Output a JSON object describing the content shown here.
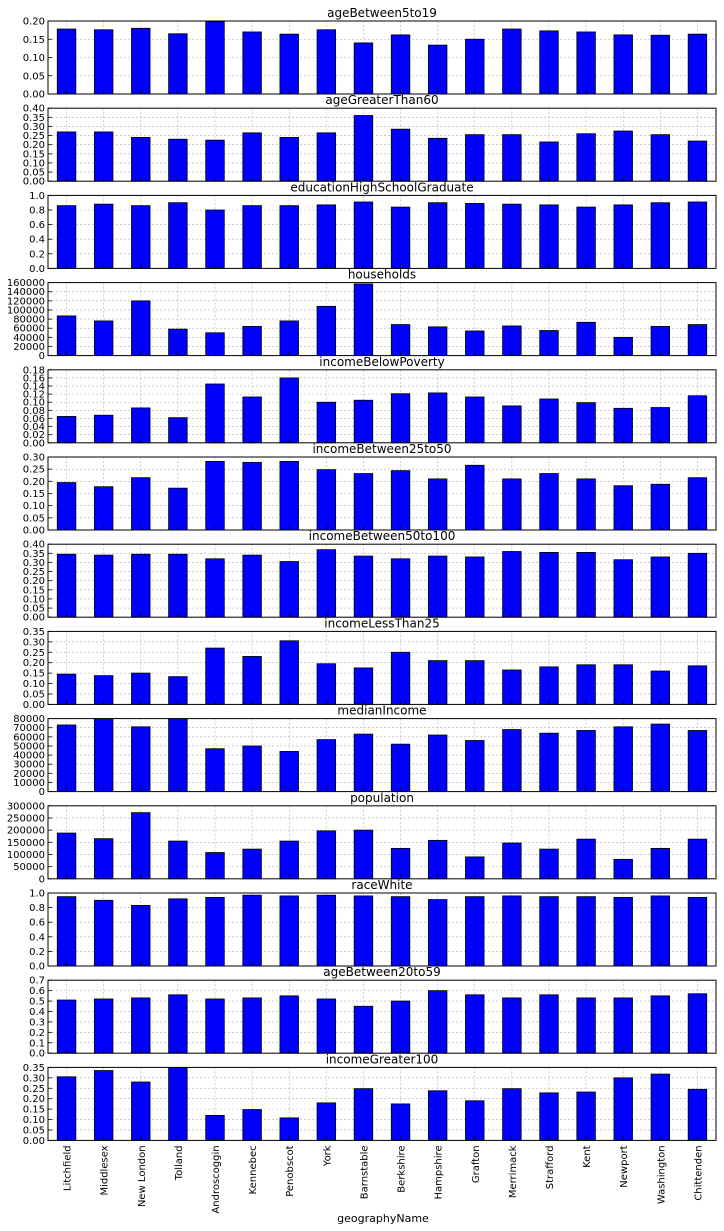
{
  "figure": {
    "xlabel": "geographyName"
  },
  "chart_data": {
    "type": "bar",
    "categories": [
      "Litchfield",
      "Middlesex",
      "New London",
      "Tolland",
      "Androscoggin",
      "Kennebec",
      "Penobscot",
      "York",
      "Barnstable",
      "Berkshire",
      "Hampshire",
      "Grafton",
      "Merrimack",
      "Strafford",
      "Kent",
      "Newport",
      "Washington",
      "Chittenden"
    ],
    "xlabel": "geographyName",
    "grid": true,
    "bar_color": "#0000ff",
    "panels": [
      {
        "title": "ageBetween5to19",
        "ylim": [
          0,
          0.2
        ],
        "ticks": [
          {
            "v": 0,
            "t": "0.00"
          },
          {
            "v": 0.05,
            "t": "0.05"
          },
          {
            "v": 0.1,
            "t": "0.10"
          },
          {
            "v": 0.15,
            "t": "0.15"
          },
          {
            "v": 0.2,
            "t": "0.20"
          }
        ],
        "values": [
          0.178,
          0.176,
          0.18,
          0.165,
          0.198,
          0.17,
          0.164,
          0.176,
          0.14,
          0.162,
          0.134,
          0.15,
          0.178,
          0.173,
          0.17,
          0.162,
          0.161,
          0.164
        ]
      },
      {
        "title": "ageGreaterThan60",
        "ylim": [
          0,
          0.4
        ],
        "ticks": [
          {
            "v": 0,
            "t": "0.00"
          },
          {
            "v": 0.05,
            "t": "0.05"
          },
          {
            "v": 0.1,
            "t": "0.10"
          },
          {
            "v": 0.15,
            "t": "0.15"
          },
          {
            "v": 0.2,
            "t": "0.20"
          },
          {
            "v": 0.25,
            "t": "0.25"
          },
          {
            "v": 0.3,
            "t": "0.30"
          },
          {
            "v": 0.35,
            "t": "0.35"
          },
          {
            "v": 0.4,
            "t": "0.40"
          }
        ],
        "values": [
          0.27,
          0.27,
          0.24,
          0.23,
          0.225,
          0.265,
          0.24,
          0.265,
          0.36,
          0.285,
          0.235,
          0.255,
          0.255,
          0.215,
          0.26,
          0.275,
          0.255,
          0.22
        ]
      },
      {
        "title": "educationHighSchoolGraduate",
        "ylim": [
          0,
          1.0
        ],
        "ticks": [
          {
            "v": 0,
            "t": "0.0"
          },
          {
            "v": 0.2,
            "t": "0.2"
          },
          {
            "v": 0.4,
            "t": "0.4"
          },
          {
            "v": 0.6,
            "t": "0.6"
          },
          {
            "v": 0.8,
            "t": "0.8"
          },
          {
            "v": 1.0,
            "t": "1.0"
          }
        ],
        "values": [
          0.86,
          0.88,
          0.86,
          0.9,
          0.8,
          0.86,
          0.86,
          0.87,
          0.91,
          0.84,
          0.9,
          0.89,
          0.88,
          0.87,
          0.84,
          0.87,
          0.9,
          0.91
        ]
      },
      {
        "title": "households",
        "ylim": [
          0,
          160000
        ],
        "ticks": [
          {
            "v": 0,
            "t": "0"
          },
          {
            "v": 20000,
            "t": "20000"
          },
          {
            "v": 40000,
            "t": "40000"
          },
          {
            "v": 60000,
            "t": "60000"
          },
          {
            "v": 80000,
            "t": "80000"
          },
          {
            "v": 100000,
            "t": "100000"
          },
          {
            "v": 120000,
            "t": "120000"
          },
          {
            "v": 140000,
            "t": "140000"
          },
          {
            "v": 160000,
            "t": "160000"
          }
        ],
        "values": [
          87000,
          76000,
          120000,
          58000,
          50000,
          64000,
          76000,
          108000,
          157000,
          68000,
          63000,
          54000,
          65000,
          55000,
          73000,
          40000,
          64000,
          68000
        ]
      },
      {
        "title": "incomeBelowPoverty",
        "ylim": [
          0,
          0.18
        ],
        "ticks": [
          {
            "v": 0,
            "t": "0.00"
          },
          {
            "v": 0.02,
            "t": "0.02"
          },
          {
            "v": 0.04,
            "t": "0.04"
          },
          {
            "v": 0.06,
            "t": "0.06"
          },
          {
            "v": 0.08,
            "t": "0.08"
          },
          {
            "v": 0.1,
            "t": "0.10"
          },
          {
            "v": 0.12,
            "t": "0.12"
          },
          {
            "v": 0.14,
            "t": "0.14"
          },
          {
            "v": 0.16,
            "t": "0.16"
          },
          {
            "v": 0.18,
            "t": "0.18"
          }
        ],
        "values": [
          0.065,
          0.068,
          0.086,
          0.062,
          0.145,
          0.113,
          0.16,
          0.1,
          0.105,
          0.121,
          0.123,
          0.113,
          0.091,
          0.108,
          0.099,
          0.085,
          0.087,
          0.116
        ]
      },
      {
        "title": "incomeBetween25to50",
        "ylim": [
          0,
          0.3
        ],
        "ticks": [
          {
            "v": 0,
            "t": "0.00"
          },
          {
            "v": 0.05,
            "t": "0.05"
          },
          {
            "v": 0.1,
            "t": "0.10"
          },
          {
            "v": 0.15,
            "t": "0.15"
          },
          {
            "v": 0.2,
            "t": "0.20"
          },
          {
            "v": 0.25,
            "t": "0.25"
          },
          {
            "v": 0.3,
            "t": "0.30"
          }
        ],
        "values": [
          0.195,
          0.178,
          0.215,
          0.172,
          0.282,
          0.278,
          0.282,
          0.248,
          0.232,
          0.244,
          0.21,
          0.266,
          0.21,
          0.232,
          0.21,
          0.182,
          0.188,
          0.215
        ]
      },
      {
        "title": "incomeBetween50to100",
        "ylim": [
          0,
          0.4
        ],
        "ticks": [
          {
            "v": 0,
            "t": "0.00"
          },
          {
            "v": 0.05,
            "t": "0.05"
          },
          {
            "v": 0.1,
            "t": "0.10"
          },
          {
            "v": 0.15,
            "t": "0.15"
          },
          {
            "v": 0.2,
            "t": "0.20"
          },
          {
            "v": 0.25,
            "t": "0.25"
          },
          {
            "v": 0.3,
            "t": "0.30"
          },
          {
            "v": 0.35,
            "t": "0.35"
          },
          {
            "v": 0.4,
            "t": "0.40"
          }
        ],
        "values": [
          0.345,
          0.34,
          0.345,
          0.345,
          0.32,
          0.34,
          0.305,
          0.37,
          0.335,
          0.32,
          0.335,
          0.33,
          0.36,
          0.355,
          0.355,
          0.315,
          0.33,
          0.35
        ]
      },
      {
        "title": "incomeLessThan25",
        "ylim": [
          0,
          0.35
        ],
        "ticks": [
          {
            "v": 0,
            "t": "0.00"
          },
          {
            "v": 0.05,
            "t": "0.05"
          },
          {
            "v": 0.1,
            "t": "0.10"
          },
          {
            "v": 0.15,
            "t": "0.15"
          },
          {
            "v": 0.2,
            "t": "0.20"
          },
          {
            "v": 0.25,
            "t": "0.25"
          },
          {
            "v": 0.3,
            "t": "0.30"
          },
          {
            "v": 0.35,
            "t": "0.35"
          }
        ],
        "values": [
          0.145,
          0.138,
          0.15,
          0.133,
          0.27,
          0.23,
          0.305,
          0.195,
          0.175,
          0.25,
          0.21,
          0.21,
          0.165,
          0.18,
          0.19,
          0.19,
          0.16,
          0.185
        ]
      },
      {
        "title": "medianIncome",
        "ylim": [
          0,
          80000
        ],
        "ticks": [
          {
            "v": 0,
            "t": "0"
          },
          {
            "v": 10000,
            "t": "10000"
          },
          {
            "v": 20000,
            "t": "20000"
          },
          {
            "v": 30000,
            "t": "30000"
          },
          {
            "v": 40000,
            "t": "40000"
          },
          {
            "v": 50000,
            "t": "50000"
          },
          {
            "v": 60000,
            "t": "60000"
          },
          {
            "v": 70000,
            "t": "70000"
          },
          {
            "v": 80000,
            "t": "80000"
          }
        ],
        "values": [
          73000,
          81000,
          71000,
          80500,
          47000,
          50000,
          44000,
          57000,
          63000,
          52000,
          62000,
          56000,
          68000,
          64000,
          67000,
          71000,
          74000,
          67000
        ]
      },
      {
        "title": "population",
        "ylim": [
          0,
          300000
        ],
        "ticks": [
          {
            "v": 0,
            "t": "0"
          },
          {
            "v": 50000,
            "t": "50000"
          },
          {
            "v": 100000,
            "t": "100000"
          },
          {
            "v": 150000,
            "t": "150000"
          },
          {
            "v": 200000,
            "t": "200000"
          },
          {
            "v": 250000,
            "t": "250000"
          },
          {
            "v": 300000,
            "t": "300000"
          }
        ],
        "values": [
          188000,
          165000,
          272000,
          155000,
          108000,
          122000,
          155000,
          197000,
          200000,
          125000,
          158000,
          90000,
          147000,
          122000,
          163000,
          80000,
          125000,
          163000
        ]
      },
      {
        "title": "raceWhite",
        "ylim": [
          0,
          1.0
        ],
        "ticks": [
          {
            "v": 0,
            "t": "0.0"
          },
          {
            "v": 0.2,
            "t": "0.2"
          },
          {
            "v": 0.4,
            "t": "0.4"
          },
          {
            "v": 0.6,
            "t": "0.6"
          },
          {
            "v": 0.8,
            "t": "0.8"
          },
          {
            "v": 1.0,
            "t": "1.0"
          }
        ],
        "values": [
          0.95,
          0.9,
          0.83,
          0.92,
          0.94,
          0.97,
          0.96,
          0.97,
          0.96,
          0.95,
          0.91,
          0.95,
          0.96,
          0.95,
          0.95,
          0.94,
          0.96,
          0.94
        ]
      },
      {
        "title": "ageBetween20to59",
        "ylim": [
          0,
          0.7
        ],
        "ticks": [
          {
            "v": 0,
            "t": "0.0"
          },
          {
            "v": 0.1,
            "t": "0.1"
          },
          {
            "v": 0.2,
            "t": "0.2"
          },
          {
            "v": 0.3,
            "t": "0.3"
          },
          {
            "v": 0.4,
            "t": "0.4"
          },
          {
            "v": 0.5,
            "t": "0.5"
          },
          {
            "v": 0.6,
            "t": "0.6"
          },
          {
            "v": 0.7,
            "t": "0.7"
          }
        ],
        "values": [
          0.51,
          0.52,
          0.53,
          0.56,
          0.52,
          0.53,
          0.55,
          0.52,
          0.45,
          0.5,
          0.6,
          0.56,
          0.53,
          0.56,
          0.53,
          0.53,
          0.55,
          0.57
        ]
      },
      {
        "title": "incomeGreater100",
        "ylim": [
          0,
          0.35
        ],
        "ticks": [
          {
            "v": 0,
            "t": "0.00"
          },
          {
            "v": 0.05,
            "t": "0.05"
          },
          {
            "v": 0.1,
            "t": "0.10"
          },
          {
            "v": 0.15,
            "t": "0.15"
          },
          {
            "v": 0.2,
            "t": "0.20"
          },
          {
            "v": 0.25,
            "t": "0.25"
          },
          {
            "v": 0.3,
            "t": "0.30"
          },
          {
            "v": 0.35,
            "t": "0.35"
          }
        ],
        "values": [
          0.305,
          0.335,
          0.28,
          0.35,
          0.12,
          0.148,
          0.108,
          0.18,
          0.248,
          0.175,
          0.238,
          0.19,
          0.248,
          0.228,
          0.232,
          0.3,
          0.318,
          0.245
        ]
      }
    ]
  }
}
